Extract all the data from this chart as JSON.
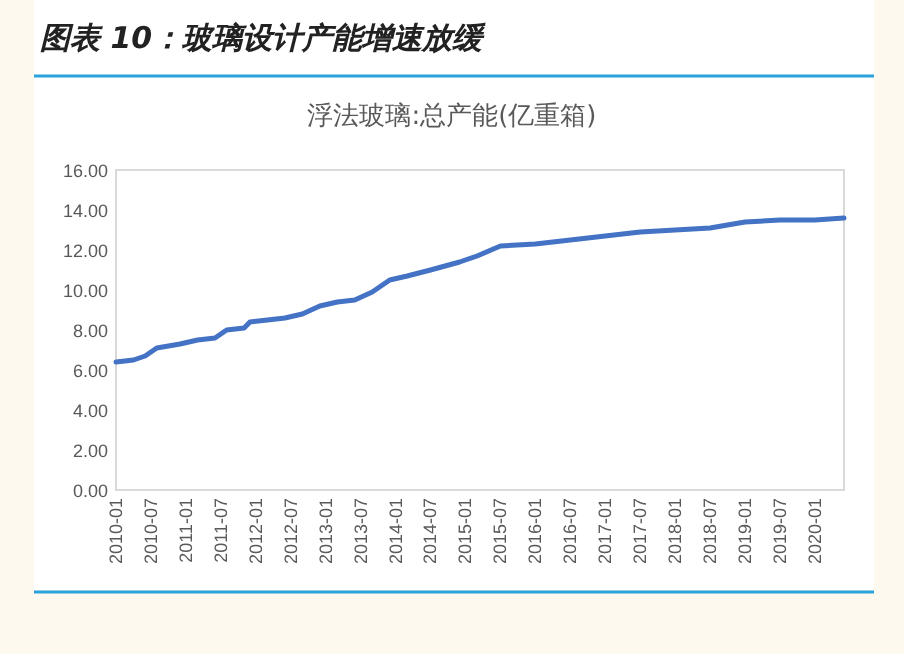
{
  "chart_data": {
    "type": "line",
    "title": "图表 10：玻璃设计产能增速放缓",
    "subtitle": "浮法玻璃:总产能(亿重箱)",
    "x": [
      "2010-01",
      "2010-04",
      "2010-06",
      "2010-08",
      "2010-12",
      "2011-03",
      "2011-06",
      "2011-08",
      "2011-11",
      "2011-12",
      "2012-03",
      "2012-06",
      "2012-09",
      "2012-12",
      "2013-03",
      "2013-06",
      "2013-09",
      "2013-12",
      "2014-03",
      "2014-07",
      "2014-12",
      "2015-03",
      "2015-07",
      "2016-01",
      "2016-07",
      "2017-01",
      "2017-07",
      "2018-01",
      "2018-07",
      "2019-01",
      "2019-07",
      "2020-01",
      "2020-06"
    ],
    "series": [
      {
        "color": "#4472c4",
        "values": [
          6.4,
          6.5,
          6.7,
          7.1,
          7.3,
          7.5,
          7.6,
          8.0,
          8.1,
          8.4,
          8.5,
          8.6,
          8.8,
          9.2,
          9.4,
          9.5,
          9.9,
          10.5,
          10.7,
          11.0,
          11.4,
          11.7,
          12.2,
          12.3,
          12.5,
          12.7,
          12.9,
          13.0,
          13.1,
          13.4,
          13.5,
          13.5,
          13.6
        ]
      }
    ],
    "xlim": [
      "2010-01",
      "2020-06"
    ],
    "xticks": [
      "2010-01",
      "2010-07",
      "2011-01",
      "2011-07",
      "2012-01",
      "2012-07",
      "2013-01",
      "2013-07",
      "2014-01",
      "2014-07",
      "2015-01",
      "2015-07",
      "2016-01",
      "2016-07",
      "2017-01",
      "2017-07",
      "2018-01",
      "2018-07",
      "2019-01",
      "2019-07",
      "2020-01"
    ],
    "ylim": [
      0,
      16
    ],
    "yticks": [
      {
        "value": 0,
        "label": "0.00"
      },
      {
        "value": 2,
        "label": "2.00"
      },
      {
        "value": 4,
        "label": "4.00"
      },
      {
        "value": 6,
        "label": "6.00"
      },
      {
        "value": 8,
        "label": "8.00"
      },
      {
        "value": 10,
        "label": "10.00"
      },
      {
        "value": 12,
        "label": "12.00"
      },
      {
        "value": 14,
        "label": "14.00"
      },
      {
        "value": 16,
        "label": "16.00"
      }
    ],
    "grid": false
  }
}
